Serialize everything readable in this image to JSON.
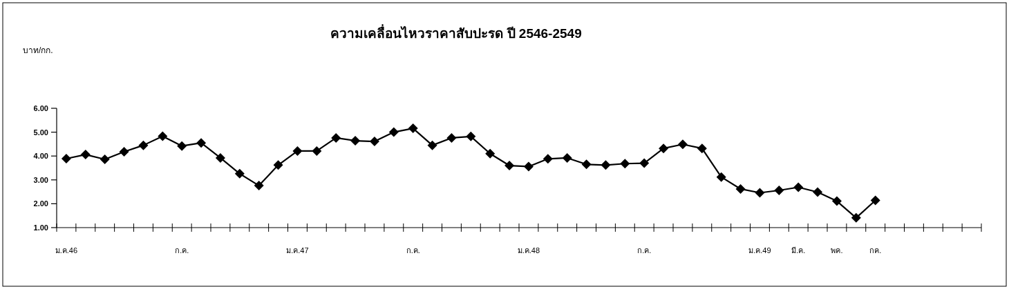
{
  "chart_data": {
    "type": "line",
    "title": "ความเคลื่อนไหวราคาสับปะรด ปี 2546-2549",
    "annotations": [
      "บาท/กก."
    ],
    "categories": [
      "ม.ค.46",
      null,
      null,
      null,
      null,
      null,
      "ก.ค.",
      null,
      null,
      null,
      null,
      null,
      "ม.ค.47",
      null,
      null,
      null,
      null,
      null,
      "ก.ค.",
      null,
      null,
      null,
      null,
      null,
      "ม.ค.48",
      null,
      null,
      null,
      null,
      null,
      "ก.ค.",
      null,
      null,
      null,
      null,
      null,
      "ม.ค.49",
      null,
      "มี.ค.",
      null,
      "พค.",
      null,
      "กค.",
      null,
      null,
      null,
      null,
      null
    ],
    "series": [
      {
        "color": "#000000",
        "values": [
          3.89,
          4.06,
          3.86,
          4.18,
          4.45,
          4.83,
          4.42,
          4.55,
          3.92,
          3.26,
          2.76,
          3.62,
          4.21,
          4.21,
          4.76,
          4.64,
          4.61,
          5.0,
          5.16,
          4.45,
          4.76,
          4.82,
          4.1,
          3.6,
          3.56,
          3.88,
          3.92,
          3.65,
          3.62,
          3.68,
          3.7,
          4.32,
          4.49,
          4.32,
          3.12,
          2.62,
          2.46,
          2.56,
          2.69,
          2.49,
          2.11,
          1.41,
          2.14,
          null,
          null,
          null,
          null,
          null
        ]
      }
    ],
    "ylim": [
      1,
      6
    ],
    "yticks": [
      {
        "value": 1,
        "label": "1.00"
      },
      {
        "value": 2,
        "label": "2.00"
      },
      {
        "value": 3,
        "label": "3.00"
      },
      {
        "value": 4,
        "label": "4.00"
      },
      {
        "value": 5,
        "label": "5.00"
      },
      {
        "value": 6,
        "label": "6.00"
      }
    ],
    "marker": "diamond",
    "line_style": "solid"
  }
}
